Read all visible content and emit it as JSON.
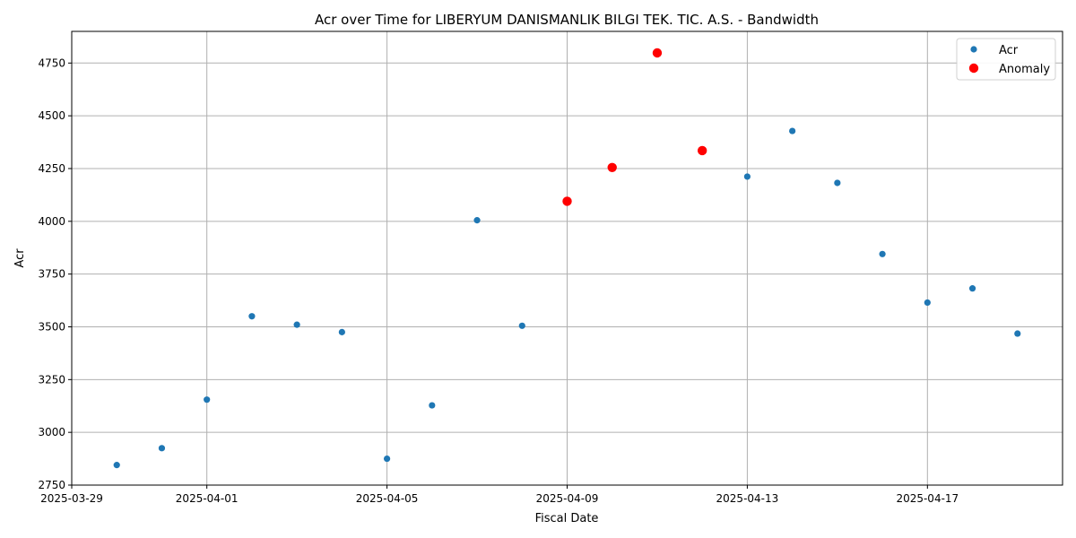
{
  "chart_data": {
    "type": "scatter",
    "title": "Acr over Time for LIBERYUM DANISMANLIK BILGI TEK. TIC. A.S. - Bandwidth",
    "xlabel": "Fiscal Date",
    "ylabel": "Acr",
    "xlim": [
      "2025-03-29",
      "2025-04-20"
    ],
    "ylim": [
      2750,
      4900
    ],
    "x_tick_labels": [
      "2025-03-29",
      "2025-04-01",
      "2025-04-05",
      "2025-04-09",
      "2025-04-13",
      "2025-04-17"
    ],
    "y_tick_labels": [
      "2750",
      "3000",
      "3250",
      "3500",
      "3750",
      "4000",
      "4250",
      "4500",
      "4750"
    ],
    "grid": true,
    "legend_position": "top-right",
    "series": [
      {
        "name": "Acr",
        "color": "#1f77b4",
        "points": [
          {
            "x": "2025-03-30",
            "y": 2845
          },
          {
            "x": "2025-03-31",
            "y": 2925
          },
          {
            "x": "2025-04-01",
            "y": 3155
          },
          {
            "x": "2025-04-02",
            "y": 3550
          },
          {
            "x": "2025-04-03",
            "y": 3510
          },
          {
            "x": "2025-04-04",
            "y": 3475
          },
          {
            "x": "2025-04-05",
            "y": 2875
          },
          {
            "x": "2025-04-06",
            "y": 3128
          },
          {
            "x": "2025-04-07",
            "y": 4005
          },
          {
            "x": "2025-04-08",
            "y": 3505
          },
          {
            "x": "2025-04-13",
            "y": 4212
          },
          {
            "x": "2025-04-14",
            "y": 4428
          },
          {
            "x": "2025-04-15",
            "y": 4182
          },
          {
            "x": "2025-04-16",
            "y": 3845
          },
          {
            "x": "2025-04-17",
            "y": 3615
          },
          {
            "x": "2025-04-18",
            "y": 3682
          },
          {
            "x": "2025-04-19",
            "y": 3468
          }
        ]
      },
      {
        "name": "Anomaly",
        "color": "#ff0000",
        "points": [
          {
            "x": "2025-04-09",
            "y": 4095
          },
          {
            "x": "2025-04-10",
            "y": 4255
          },
          {
            "x": "2025-04-11",
            "y": 4798
          },
          {
            "x": "2025-04-12",
            "y": 4335
          }
        ]
      }
    ]
  }
}
